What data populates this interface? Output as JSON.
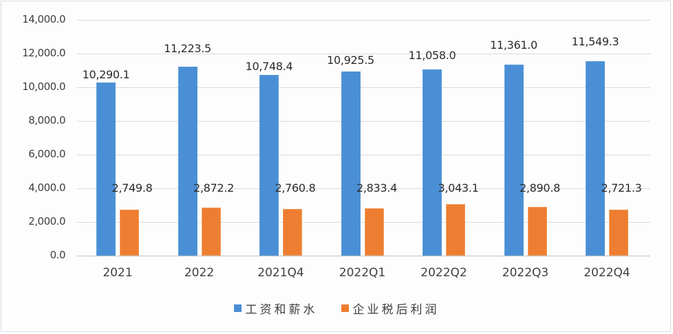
{
  "chart_data": {
    "type": "bar",
    "title": "",
    "xlabel": "",
    "ylabel": "",
    "ylim": [
      0,
      14000
    ],
    "yticks": [
      "0.0",
      "2,000.0",
      "4,000.0",
      "6,000.0",
      "8,000.0",
      "10,000.0",
      "12,000.0",
      "14,000.0"
    ],
    "grid": true,
    "legend_position": "bottom",
    "categories": [
      "2021",
      "2022",
      "2021Q4",
      "2022Q1",
      "2022Q2",
      "2022Q3",
      "2022Q4"
    ],
    "series": [
      {
        "name": "工资和薪水",
        "color": "#5b9bd5",
        "values": [
          10290.1,
          11223.5,
          10748.4,
          10925.5,
          11058.0,
          11361.0,
          11549.3
        ],
        "labels": [
          "10,290.1",
          "11,223.5",
          "10,748.4",
          "10,925.5",
          "11,058.0",
          "11,361.0",
          "11,549.3"
        ]
      },
      {
        "name": "企业税后利润",
        "color": "#ed7d31",
        "values": [
          2749.8,
          2872.2,
          2760.8,
          2833.4,
          3043.1,
          2890.8,
          2721.3
        ],
        "labels": [
          "2,749.8",
          "2,872.2",
          "2,760.8",
          "2,833.4",
          "3,043.1",
          "2,890.8",
          "2,721.3"
        ]
      }
    ]
  },
  "legend": {
    "items": [
      {
        "label": "工资和薪水",
        "color": "#5b9bd5"
      },
      {
        "label": "企业税后利润",
        "color": "#ed7d31"
      }
    ]
  }
}
